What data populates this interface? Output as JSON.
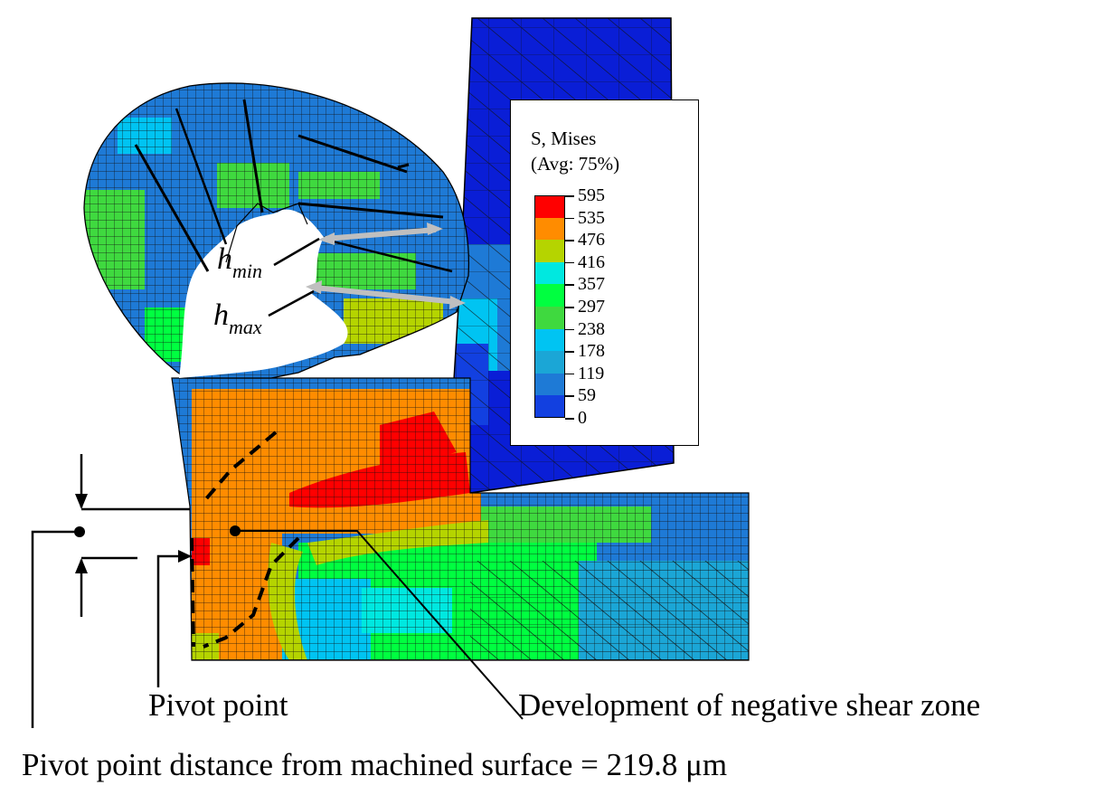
{
  "legend": {
    "title_line1": "S, Mises",
    "title_line2": "(Avg: 75%)",
    "levels": [
      {
        "value": "595",
        "color": "#ff0000"
      },
      {
        "value": "535",
        "color": "#ff8c00"
      },
      {
        "value": "476",
        "color": "#b5d400"
      },
      {
        "value": "416",
        "color": "#00e8e0"
      },
      {
        "value": "357",
        "color": "#00ff40"
      },
      {
        "value": "297",
        "color": "#3fd93f"
      },
      {
        "value": "238",
        "color": "#00c4f2"
      },
      {
        "value": "178",
        "color": "#1ba6d6"
      },
      {
        "value": "119",
        "color": "#1e7ad6"
      },
      {
        "value": "59",
        "color": "#1240e0"
      },
      {
        "value": "0",
        "color": "#0a1ed6"
      }
    ]
  },
  "labels": {
    "h_min_base": "h",
    "h_min_sub": "min",
    "h_max_base": "h",
    "h_max_sub": "max",
    "pivot_point": "Pivot point",
    "shear_zone": "Development of negative shear zone",
    "pivot_distance": "Pivot point distance from machined surface = 219.8 μm"
  }
}
